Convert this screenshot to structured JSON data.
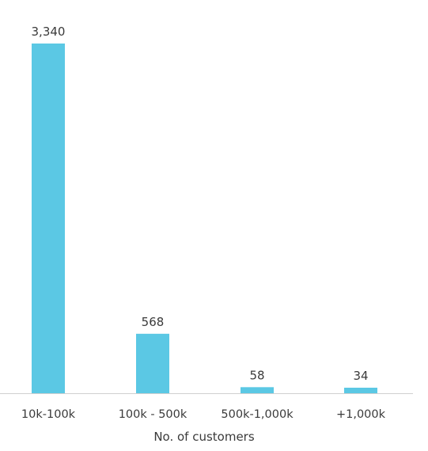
{
  "chart_data": {
    "type": "bar",
    "categories": [
      "10k-100k",
      "100k - 500k",
      "500k-1,000k",
      "+1,000k"
    ],
    "values": [
      3340,
      568,
      58,
      34
    ],
    "value_labels": [
      "3,340",
      "568",
      "58",
      "34"
    ],
    "title": "",
    "xlabel": "No. of customers",
    "ylabel": "",
    "ylim": [
      0,
      3340
    ],
    "grid": false,
    "legend": "none",
    "bar_color": "#5BC8E4",
    "axis_color": "#D0D0D0",
    "text_color": "#3A3A3A"
  }
}
